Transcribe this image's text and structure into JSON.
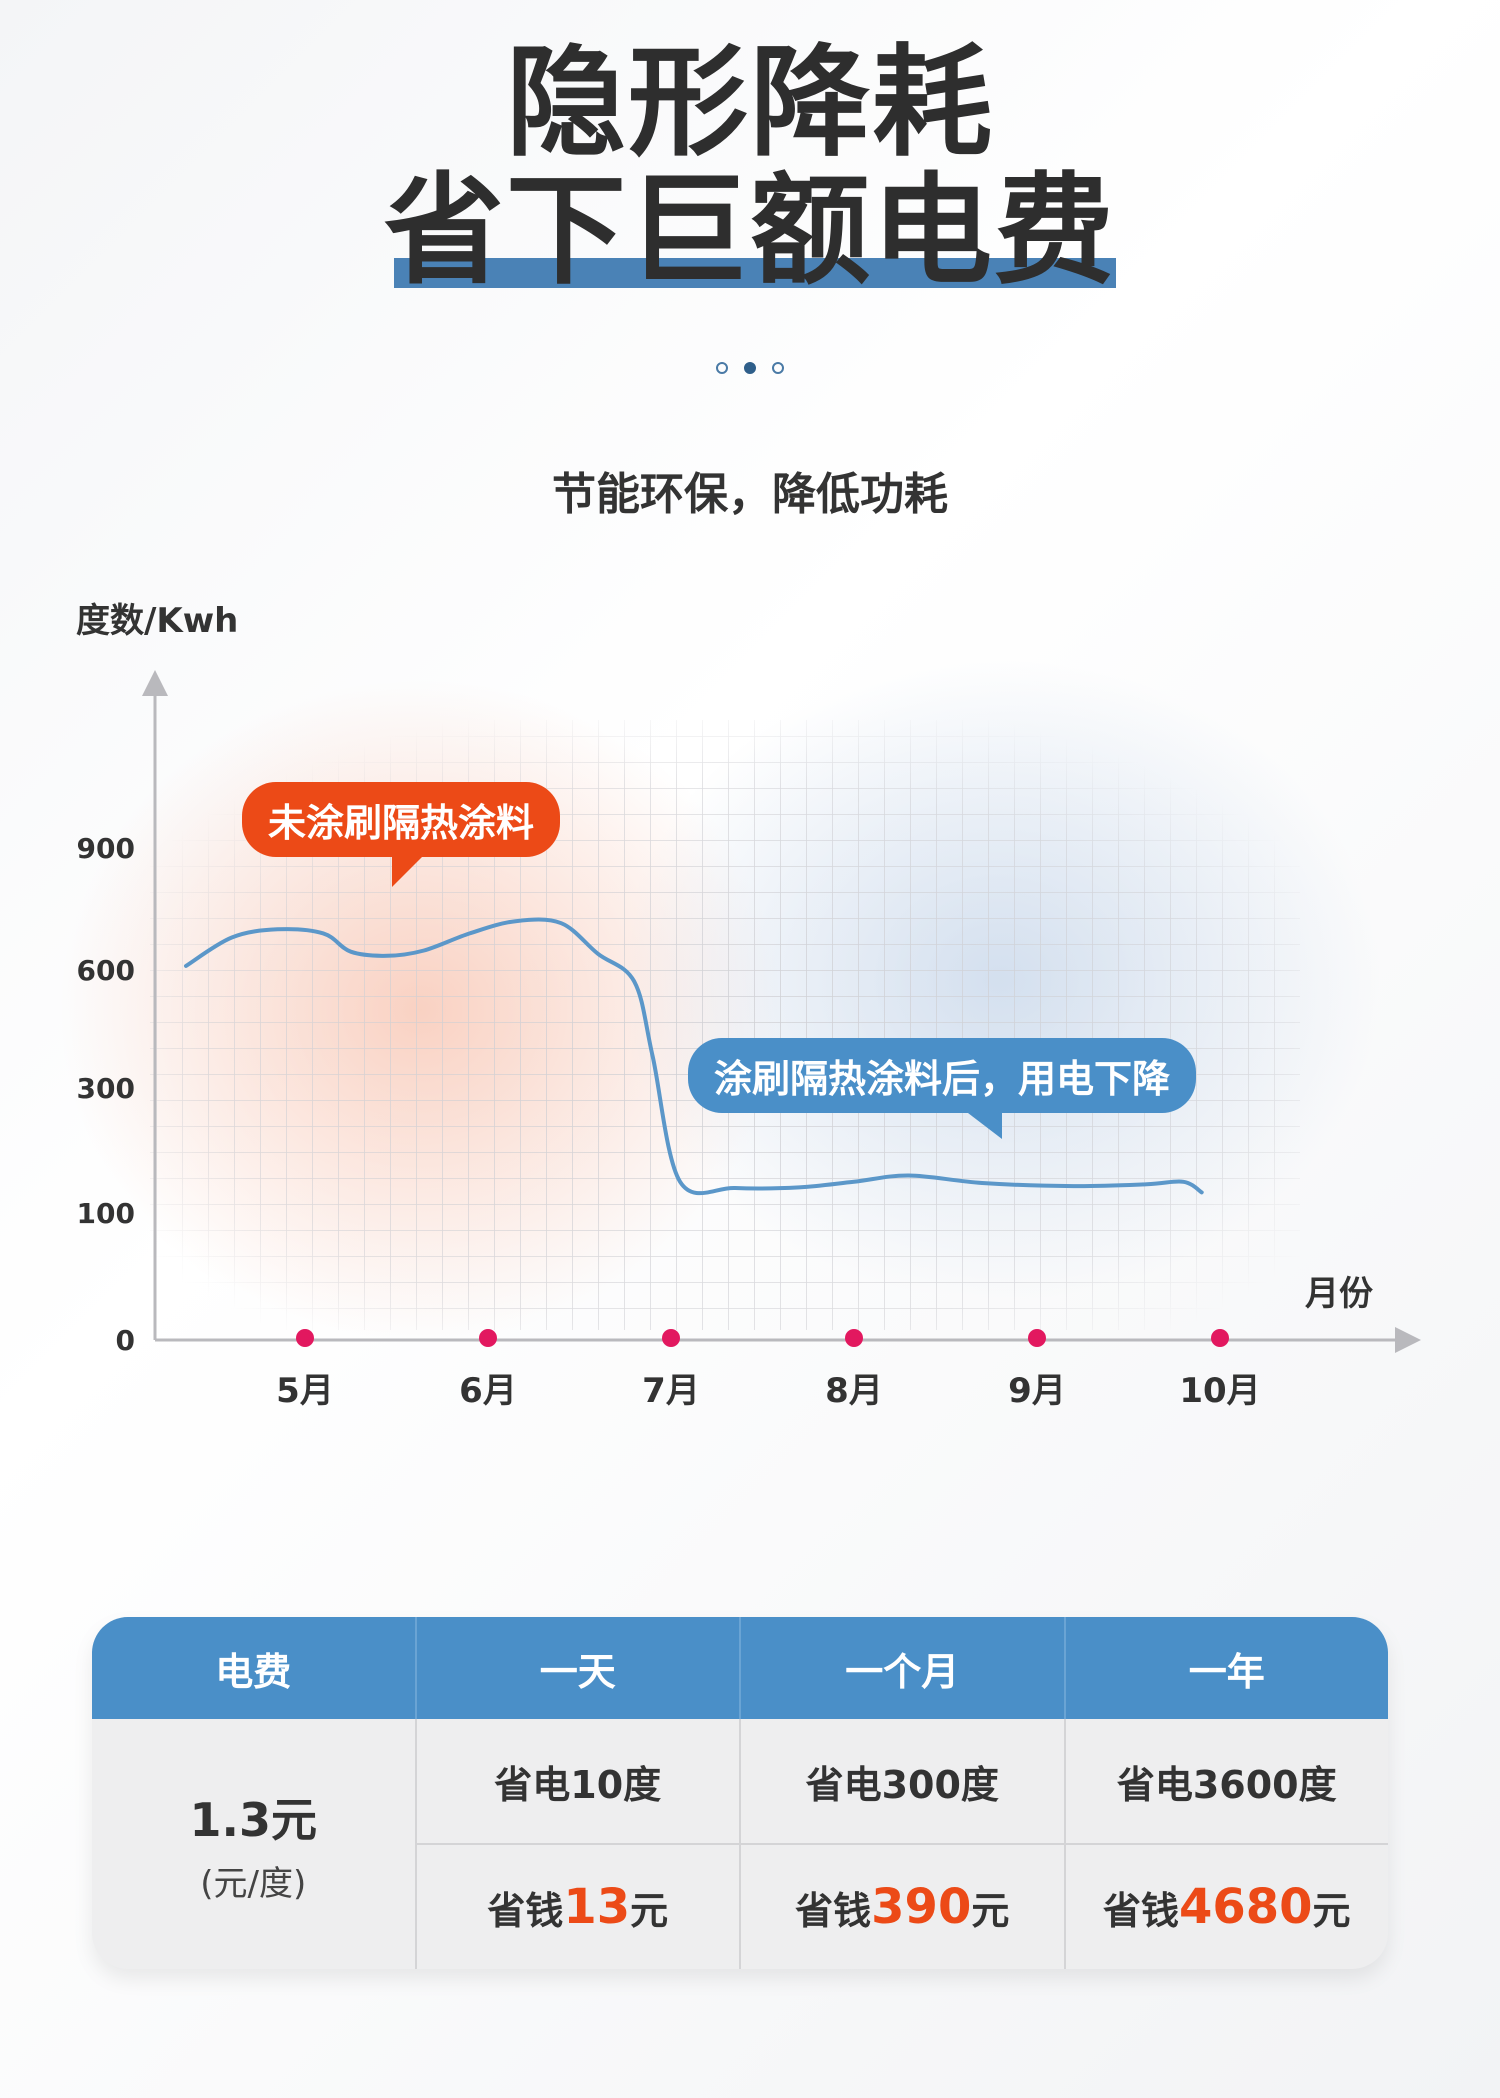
{
  "header": {
    "title_line1": "隐形降耗",
    "title_line2": "省下巨额电费",
    "subtitle": "节能环保，降低功耗"
  },
  "carousel": {
    "count": 3,
    "active": 1
  },
  "chart_data": {
    "type": "line",
    "ylabel": "度数/Kwh",
    "xlabel": "月份",
    "y_ticks": [
      "0",
      "100",
      "300",
      "600",
      "900"
    ],
    "categories": [
      "5月",
      "6月",
      "7月",
      "8月",
      "9月",
      "10月"
    ],
    "annotations": [
      "未涂刷隔热涂料",
      "涂刷隔热涂料后，用电下降"
    ],
    "grid": true,
    "series": [
      {
        "color": "#5b97c9",
        "points": [
          [
            4.35,
            610
          ],
          [
            4.6,
            680
          ],
          [
            4.85,
            700
          ],
          [
            5.1,
            690
          ],
          [
            5.25,
            645
          ],
          [
            5.45,
            635
          ],
          [
            5.65,
            648
          ],
          [
            5.9,
            690
          ],
          [
            6.15,
            720
          ],
          [
            6.4,
            715
          ],
          [
            6.6,
            640
          ],
          [
            6.8,
            570
          ],
          [
            6.9,
            380
          ],
          [
            7.05,
            150
          ],
          [
            7.35,
            140
          ],
          [
            7.7,
            141
          ],
          [
            8.0,
            150
          ],
          [
            8.3,
            160
          ],
          [
            8.7,
            148
          ],
          [
            9.2,
            143
          ],
          [
            9.6,
            146
          ],
          [
            9.8,
            150
          ],
          [
            9.9,
            133
          ]
        ]
      }
    ],
    "tick_markers_color": "#e2185f"
  },
  "table": {
    "headers": [
      "电费",
      "一天",
      "一个月",
      "一年"
    ],
    "price": "1.3元",
    "price_unit": "(元/度)",
    "rows": [
      {
        "power": "省电10度",
        "money_prefix": "省钱",
        "money_value": "13",
        "money_suffix": "元"
      },
      {
        "power": "省电300度",
        "money_prefix": "省钱",
        "money_value": "390",
        "money_suffix": "元"
      },
      {
        "power": "省电3600度",
        "money_prefix": "省钱",
        "money_value": "4680",
        "money_suffix": "元"
      }
    ]
  }
}
